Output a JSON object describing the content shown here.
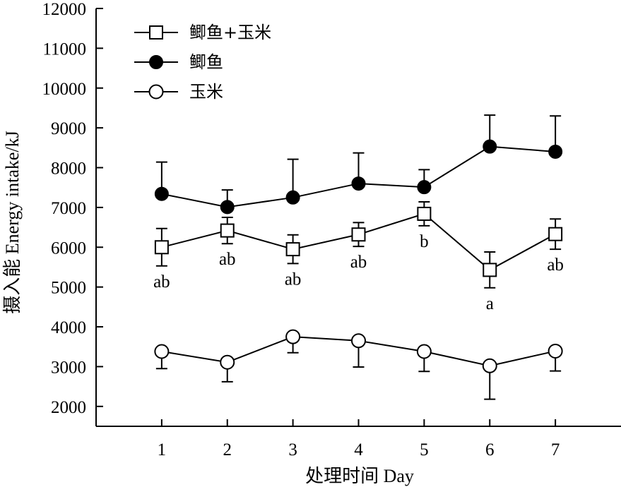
{
  "chart_data": {
    "type": "line",
    "title": "",
    "xlabel": "处理时间 Day",
    "ylabel": "摄入能 Energy intake/kJ",
    "x": [
      1,
      2,
      3,
      4,
      5,
      6,
      7
    ],
    "xlim": [
      0,
      8
    ],
    "ylim": [
      1500,
      12000
    ],
    "yticks": [
      2000,
      3000,
      4000,
      5000,
      6000,
      7000,
      8000,
      9000,
      10000,
      11000,
      12000
    ],
    "xticks": [
      1,
      2,
      3,
      4,
      5,
      6,
      7
    ],
    "legend_position": "top-left",
    "grid": false,
    "series": [
      {
        "name": "鲫鱼+玉米",
        "marker": "open-square",
        "values": [
          6000,
          6420,
          5950,
          6320,
          6840,
          5430,
          6330
        ],
        "errors": [
          470,
          330,
          360,
          300,
          300,
          450,
          380
        ],
        "error_direction": "both",
        "labels": [
          "ab",
          "ab",
          "ab",
          "ab",
          "b",
          "a",
          "ab"
        ]
      },
      {
        "name": "鲫鱼",
        "marker": "filled-circle",
        "values": [
          7340,
          7010,
          7250,
          7600,
          7510,
          8530,
          8400
        ],
        "errors": [
          800,
          430,
          960,
          770,
          440,
          790,
          900
        ],
        "error_direction": "up"
      },
      {
        "name": "玉米",
        "marker": "open-circle",
        "values": [
          3380,
          3110,
          3750,
          3650,
          3380,
          3020,
          3390
        ],
        "errors": [
          430,
          490,
          400,
          660,
          500,
          840,
          500
        ],
        "error_direction": "down"
      }
    ],
    "colors": {
      "line": "#000000",
      "fill": "#000000",
      "background": "#ffffff"
    }
  }
}
